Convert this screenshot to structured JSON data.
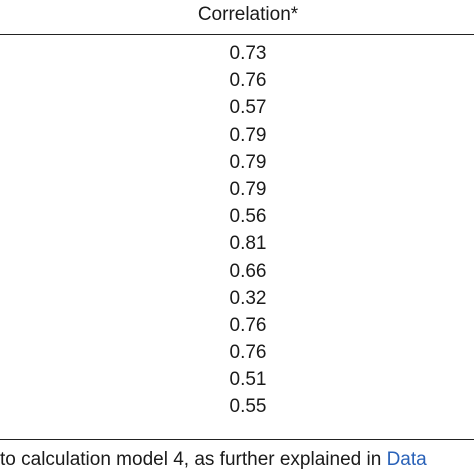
{
  "table": {
    "column_header": "Correlation*",
    "values": [
      "0.73",
      "0.76",
      "0.57",
      "0.79",
      "0.79",
      "0.79",
      "0.56",
      "0.81",
      "0.66",
      "0.32",
      "0.76",
      "0.76",
      "0.51",
      "0.55"
    ]
  },
  "footnote": {
    "text": "to calculation model 4, as further explained in ",
    "link_text": "Data",
    "link_color": "#2a62b8"
  }
}
